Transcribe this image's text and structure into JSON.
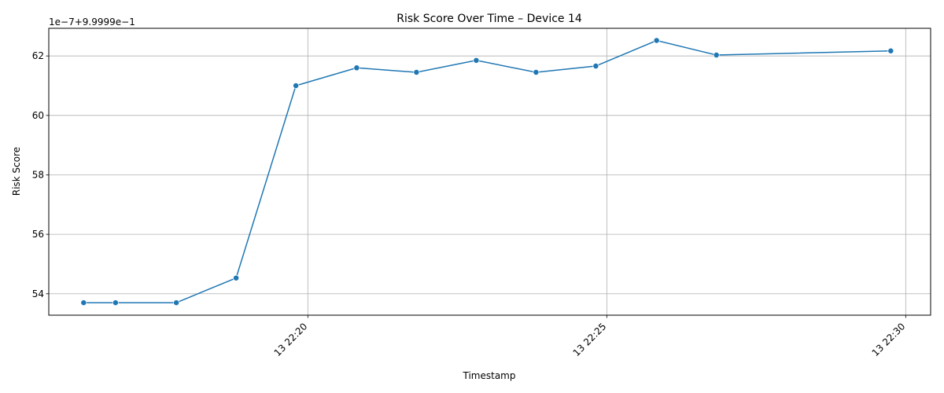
{
  "chart_data": {
    "type": "line",
    "title": "Risk Score Over Time – Device 14",
    "xlabel": "Timestamp",
    "ylabel": "Risk Score",
    "offset_label": "1e−7+9.9999e−1",
    "color": "#1f77b4",
    "grid": true,
    "legend": "none",
    "x_tick_labels": [
      "13 22:20",
      "13 22:25",
      "13 22:30"
    ],
    "y_tick_labels": [
      "54",
      "56",
      "58",
      "60",
      "62"
    ],
    "xlim": [
      "22:15:40",
      "22:30:25"
    ],
    "ylim": [
      53.28,
      62.93
    ],
    "series": [
      {
        "x": [
          "22:16:15",
          "22:16:47",
          "22:17:48",
          "22:18:48",
          "22:19:48",
          "22:20:49",
          "22:21:49",
          "22:22:49",
          "22:23:49",
          "22:24:49",
          "22:25:50",
          "22:26:50",
          "22:29:45"
        ],
        "values": [
          53.7,
          53.7,
          53.7,
          54.53,
          61.0,
          61.6,
          61.45,
          61.85,
          61.45,
          61.66,
          62.52,
          62.03,
          62.17
        ]
      }
    ]
  }
}
